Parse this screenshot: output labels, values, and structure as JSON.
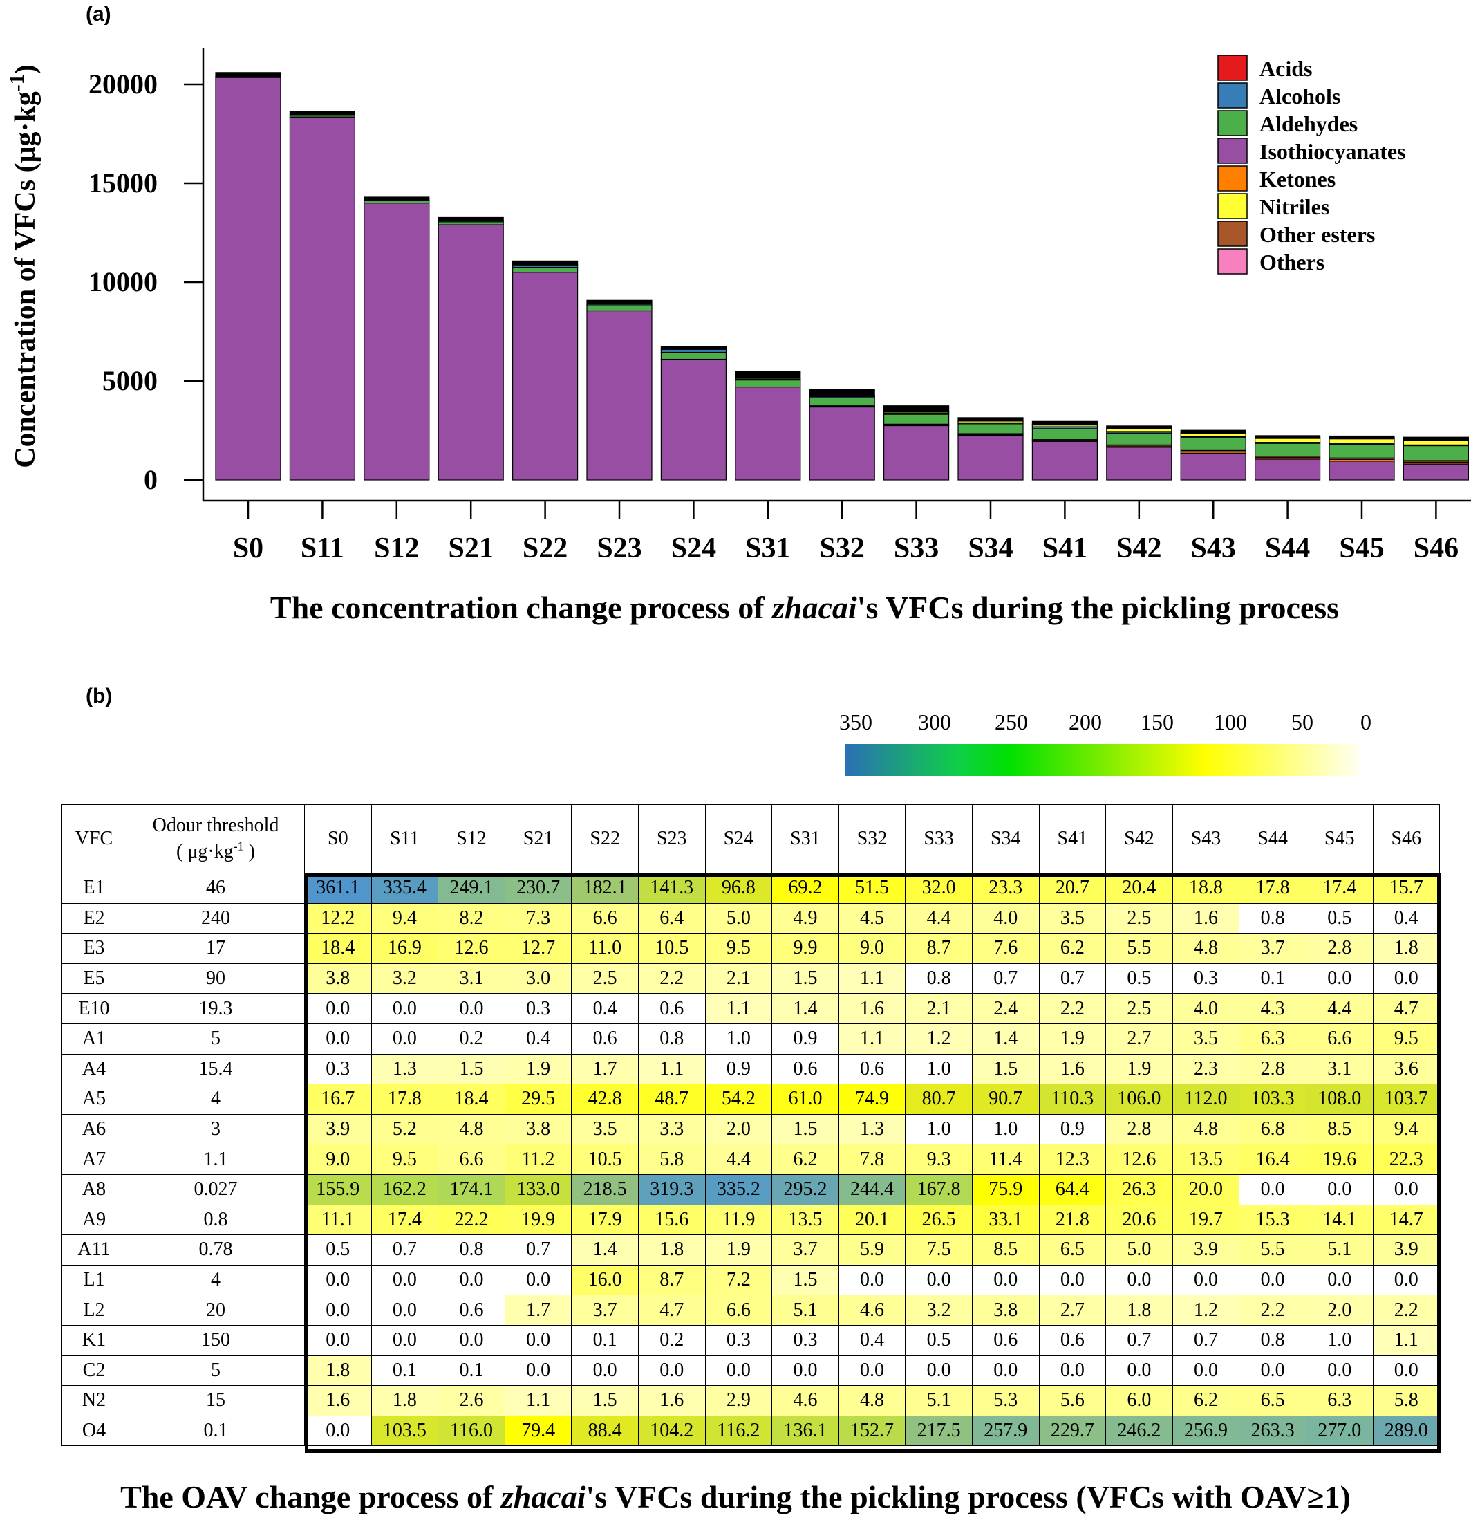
{
  "panel_a": {
    "label": "(a)",
    "caption_pre": "The concentration change process of ",
    "caption_em": "zhacai",
    "caption_post": "'s VFCs during the pickling process"
  },
  "panel_b": {
    "label": "(b)",
    "caption_pre": "The OAV change process of ",
    "caption_em": "zhacai",
    "caption_post": "'s VFCs during the pickling process (VFCs with OAV≥1)"
  },
  "colorbar": {
    "ticks": [
      "350",
      "300",
      "250",
      "200",
      "150",
      "100",
      "50",
      "0"
    ],
    "colors": {
      "c350": "#2b6fb5",
      "c250": "#0fcf48",
      "c150": "#88ee00",
      "c80": "#ffff00",
      "c0": "#ffffff"
    }
  },
  "chart_data": [
    {
      "type": "bar",
      "stacked": true,
      "ylabel": "Concentration of VFCs (μg·kg-1)",
      "yticks": [
        "0",
        "5000",
        "10000",
        "15000",
        "20000"
      ],
      "ylim": [
        0,
        21000
      ],
      "categories": [
        "S0",
        "S11",
        "S12",
        "S21",
        "S22",
        "S23",
        "S24",
        "S31",
        "S32",
        "S33",
        "S34",
        "S41",
        "S42",
        "S43",
        "S44",
        "S45",
        "S46"
      ],
      "legend": {
        "position": "top-right"
      },
      "series": [
        {
          "name": "Isothiocyanates",
          "color": "#984ea3",
          "values": [
            20350,
            18350,
            14000,
            12900,
            10500,
            8550,
            6100,
            4700,
            3700,
            2750,
            2250,
            1950,
            1650,
            1350,
            1050,
            950,
            800
          ]
        },
        {
          "name": "Ketones",
          "color": "#ff7f00",
          "values": [
            0,
            0,
            0,
            0,
            0,
            0,
            0,
            0,
            20,
            30,
            40,
            40,
            60,
            70,
            80,
            90,
            100
          ]
        },
        {
          "name": "Other esters",
          "color": "#a65628",
          "values": [
            0,
            0,
            0,
            0,
            0,
            0,
            0,
            0,
            30,
            40,
            50,
            50,
            60,
            70,
            70,
            70,
            80
          ]
        },
        {
          "name": "Aldehydes",
          "color": "#4daf4a",
          "values": [
            30,
            80,
            120,
            150,
            250,
            300,
            350,
            350,
            400,
            500,
            500,
            550,
            600,
            650,
            650,
            700,
            750
          ]
        },
        {
          "name": "Alcohols",
          "color": "#377eb8",
          "values": [
            20,
            40,
            40,
            60,
            120,
            60,
            150,
            40,
            60,
            50,
            50,
            100,
            80,
            50,
            50,
            50,
            40
          ]
        },
        {
          "name": "Nitriles",
          "color": "#ffff33",
          "values": [
            0,
            0,
            0,
            0,
            0,
            0,
            0,
            50,
            60,
            80,
            100,
            100,
            150,
            180,
            200,
            220,
            250
          ]
        },
        {
          "name": "Acids",
          "color": "#e41a1c",
          "values": [
            0,
            0,
            0,
            0,
            0,
            0,
            0,
            0,
            10,
            10,
            20,
            20,
            30,
            30,
            30,
            30,
            30
          ]
        },
        {
          "name": "Others",
          "color": "#f781bf",
          "values": [
            0,
            0,
            0,
            0,
            0,
            0,
            0,
            0,
            0,
            0,
            0,
            0,
            0,
            0,
            0,
            0,
            0
          ]
        },
        {
          "name": "",
          "color": "#000000",
          "values": [
            200,
            150,
            140,
            160,
            200,
            170,
            150,
            330,
            300,
            290,
            140,
            150,
            100,
            110,
            110,
            110,
            110
          ]
        }
      ],
      "legend_entries": [
        {
          "name": "Acids",
          "color": "#e41a1c"
        },
        {
          "name": "Alcohols",
          "color": "#377eb8"
        },
        {
          "name": "Aldehydes",
          "color": "#4daf4a"
        },
        {
          "name": "Isothiocyanates",
          "color": "#984ea3"
        },
        {
          "name": "Ketones",
          "color": "#ff7f00"
        },
        {
          "name": "Nitriles",
          "color": "#ffff33"
        },
        {
          "name": "Other esters",
          "color": "#a65628"
        },
        {
          "name": "Others",
          "color": "#f781bf"
        }
      ]
    },
    {
      "type": "heatmap",
      "header": {
        "vfc": "VFC",
        "threshold_line1": "Odour threshold",
        "threshold_line2": "( μg·kg-1 )"
      },
      "columns": [
        "S0",
        "S11",
        "S12",
        "S21",
        "S22",
        "S23",
        "S24",
        "S31",
        "S32",
        "S33",
        "S34",
        "S41",
        "S42",
        "S43",
        "S44",
        "S45",
        "S46"
      ],
      "rows": [
        {
          "vfc": "E1",
          "threshold": "46",
          "values": [
            "361.1",
            "335.4",
            "249.1",
            "230.7",
            "182.1",
            "141.3",
            "96.8",
            "69.2",
            "51.5",
            "32.0",
            "23.3",
            "20.7",
            "20.4",
            "18.8",
            "17.8",
            "17.4",
            "15.7"
          ]
        },
        {
          "vfc": "E2",
          "threshold": "240",
          "values": [
            "12.2",
            "9.4",
            "8.2",
            "7.3",
            "6.6",
            "6.4",
            "5.0",
            "4.9",
            "4.5",
            "4.4",
            "4.0",
            "3.5",
            "2.5",
            "1.6",
            "0.8",
            "0.5",
            "0.4"
          ]
        },
        {
          "vfc": "E3",
          "threshold": "17",
          "values": [
            "18.4",
            "16.9",
            "12.6",
            "12.7",
            "11.0",
            "10.5",
            "9.5",
            "9.9",
            "9.0",
            "8.7",
            "7.6",
            "6.2",
            "5.5",
            "4.8",
            "3.7",
            "2.8",
            "1.8"
          ]
        },
        {
          "vfc": "E5",
          "threshold": "90",
          "values": [
            "3.8",
            "3.2",
            "3.1",
            "3.0",
            "2.5",
            "2.2",
            "2.1",
            "1.5",
            "1.1",
            "0.8",
            "0.7",
            "0.7",
            "0.5",
            "0.3",
            "0.1",
            "0.0",
            "0.0"
          ]
        },
        {
          "vfc": "E10",
          "threshold": "19.3",
          "values": [
            "0.0",
            "0.0",
            "0.0",
            "0.3",
            "0.4",
            "0.6",
            "1.1",
            "1.4",
            "1.6",
            "2.1",
            "2.4",
            "2.2",
            "2.5",
            "4.0",
            "4.3",
            "4.4",
            "4.7"
          ]
        },
        {
          "vfc": "A1",
          "threshold": "5",
          "values": [
            "0.0",
            "0.0",
            "0.2",
            "0.4",
            "0.6",
            "0.8",
            "1.0",
            "0.9",
            "1.1",
            "1.2",
            "1.4",
            "1.9",
            "2.7",
            "3.5",
            "6.3",
            "6.6",
            "9.5"
          ]
        },
        {
          "vfc": "A4",
          "threshold": "15.4",
          "values": [
            "0.3",
            "1.3",
            "1.5",
            "1.9",
            "1.7",
            "1.1",
            "0.9",
            "0.6",
            "0.6",
            "1.0",
            "1.5",
            "1.6",
            "1.9",
            "2.3",
            "2.8",
            "3.1",
            "3.6"
          ]
        },
        {
          "vfc": "A5",
          "threshold": "4",
          "values": [
            "16.7",
            "17.8",
            "18.4",
            "29.5",
            "42.8",
            "48.7",
            "54.2",
            "61.0",
            "74.9",
            "80.7",
            "90.7",
            "110.3",
            "106.0",
            "112.0",
            "103.3",
            "108.0",
            "103.7"
          ]
        },
        {
          "vfc": "A6",
          "threshold": "3",
          "values": [
            "3.9",
            "5.2",
            "4.8",
            "3.8",
            "3.5",
            "3.3",
            "2.0",
            "1.5",
            "1.3",
            "1.0",
            "1.0",
            "0.9",
            "2.8",
            "4.8",
            "6.8",
            "8.5",
            "9.4"
          ]
        },
        {
          "vfc": "A7",
          "threshold": "1.1",
          "values": [
            "9.0",
            "9.5",
            "6.6",
            "11.2",
            "10.5",
            "5.8",
            "4.4",
            "6.2",
            "7.8",
            "9.3",
            "11.4",
            "12.3",
            "12.6",
            "13.5",
            "16.4",
            "19.6",
            "22.3"
          ]
        },
        {
          "vfc": "A8",
          "threshold": "0.027",
          "values": [
            "155.9",
            "162.2",
            "174.1",
            "133.0",
            "218.5",
            "319.3",
            "335.2",
            "295.2",
            "244.4",
            "167.8",
            "75.9",
            "64.4",
            "26.3",
            "20.0",
            "0.0",
            "0.0",
            "0.0"
          ]
        },
        {
          "vfc": "A9",
          "threshold": "0.8",
          "values": [
            "11.1",
            "17.4",
            "22.2",
            "19.9",
            "17.9",
            "15.6",
            "11.9",
            "13.5",
            "20.1",
            "26.5",
            "33.1",
            "21.8",
            "20.6",
            "19.7",
            "15.3",
            "14.1",
            "14.7"
          ]
        },
        {
          "vfc": "A11",
          "threshold": "0.78",
          "values": [
            "0.5",
            "0.7",
            "0.8",
            "0.7",
            "1.4",
            "1.8",
            "1.9",
            "3.7",
            "5.9",
            "7.5",
            "8.5",
            "6.5",
            "5.0",
            "3.9",
            "5.5",
            "5.1",
            "3.9"
          ]
        },
        {
          "vfc": "L1",
          "threshold": "4",
          "values": [
            "0.0",
            "0.0",
            "0.0",
            "0.0",
            "16.0",
            "8.7",
            "7.2",
            "1.5",
            "0.0",
            "0.0",
            "0.0",
            "0.0",
            "0.0",
            "0.0",
            "0.0",
            "0.0",
            "0.0"
          ]
        },
        {
          "vfc": "L2",
          "threshold": "20",
          "values": [
            "0.0",
            "0.0",
            "0.6",
            "1.7",
            "3.7",
            "4.7",
            "6.6",
            "5.1",
            "4.6",
            "3.2",
            "3.8",
            "2.7",
            "1.8",
            "1.2",
            "2.2",
            "2.0",
            "2.2"
          ]
        },
        {
          "vfc": "K1",
          "threshold": "150",
          "values": [
            "0.0",
            "0.0",
            "0.0",
            "0.0",
            "0.1",
            "0.2",
            "0.3",
            "0.3",
            "0.4",
            "0.5",
            "0.6",
            "0.6",
            "0.7",
            "0.7",
            "0.8",
            "1.0",
            "1.1"
          ]
        },
        {
          "vfc": "C2",
          "threshold": "5",
          "values": [
            "1.8",
            "0.1",
            "0.1",
            "0.0",
            "0.0",
            "0.0",
            "0.0",
            "0.0",
            "0.0",
            "0.0",
            "0.0",
            "0.0",
            "0.0",
            "0.0",
            "0.0",
            "0.0",
            "0.0"
          ]
        },
        {
          "vfc": "N2",
          "threshold": "15",
          "values": [
            "1.6",
            "1.8",
            "2.6",
            "1.1",
            "1.5",
            "1.6",
            "2.9",
            "4.6",
            "4.8",
            "5.1",
            "5.3",
            "5.6",
            "6.0",
            "6.2",
            "6.5",
            "6.3",
            "5.8"
          ]
        },
        {
          "vfc": "O4",
          "threshold": "0.1",
          "values": [
            "0.0",
            "103.5",
            "116.0",
            "79.4",
            "88.4",
            "104.2",
            "116.2",
            "136.1",
            "152.7",
            "217.5",
            "257.9",
            "229.7",
            "246.2",
            "256.9",
            "263.3",
            "277.0",
            "289.0"
          ]
        }
      ]
    }
  ]
}
